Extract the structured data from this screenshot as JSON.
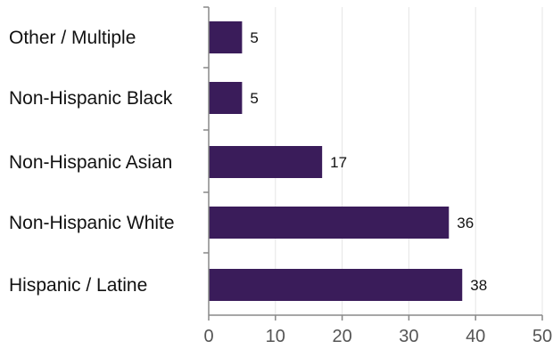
{
  "colors": {
    "bar": "#3a1c5a",
    "axis": "#888888",
    "grid": "#e5e5e5",
    "text": "#111111",
    "tick_text": "#555555"
  },
  "chart_data": {
    "type": "bar",
    "orientation": "horizontal",
    "categories": [
      "Other / Multiple",
      "Non-Hispanic Black",
      "Non-Hispanic Asian",
      "Non-Hispanic White",
      "Hispanic / Latine"
    ],
    "values": [
      5,
      5,
      17,
      36,
      38
    ],
    "value_labels": [
      "5",
      "5",
      "17",
      "36",
      "38"
    ],
    "xlim": [
      0,
      50
    ],
    "x_ticks": [
      0,
      10,
      20,
      30,
      40,
      50
    ],
    "x_tick_labels": [
      "0",
      "10",
      "20",
      "30",
      "40",
      "50"
    ],
    "title": "",
    "xlabel": "",
    "ylabel": "",
    "grid": true,
    "legend": false
  }
}
